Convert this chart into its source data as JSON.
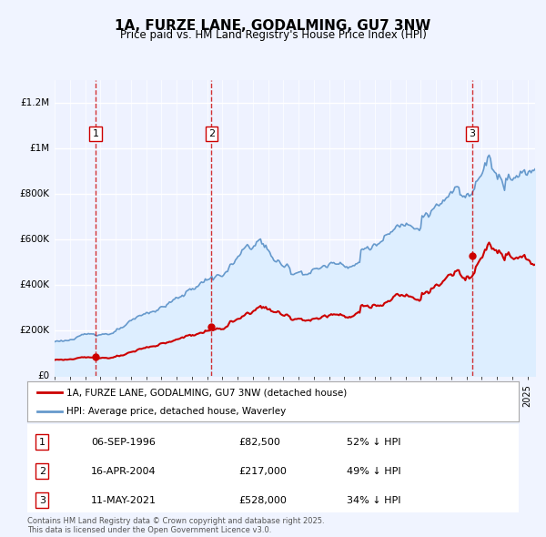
{
  "title": "1A, FURZE LANE, GODALMING, GU7 3NW",
  "subtitle": "Price paid vs. HM Land Registry's House Price Index (HPI)",
  "ylim": [
    0,
    1300000
  ],
  "yticks": [
    0,
    200000,
    400000,
    600000,
    800000,
    1000000,
    1200000
  ],
  "ytick_labels": [
    "£0",
    "£200K",
    "£400K",
    "£600K",
    "£800K",
    "£1M",
    "£1.2M"
  ],
  "xlim_start": 1994.0,
  "xlim_end": 2025.5,
  "transactions": [
    {
      "label": 1,
      "date": 1996.69,
      "price": 82500
    },
    {
      "label": 2,
      "date": 2004.29,
      "price": 217000
    },
    {
      "label": 3,
      "date": 2021.36,
      "price": 528000
    }
  ],
  "sale_color": "#cc0000",
  "hpi_color": "#6699cc",
  "hpi_fill_color": "#ddeeff",
  "background_color": "#f0f4ff",
  "plot_bg_color": "#eef2ff",
  "grid_color": "#ffffff",
  "vline_color": "#cc0000",
  "legend_entries": [
    "1A, FURZE LANE, GODALMING, GU7 3NW (detached house)",
    "HPI: Average price, detached house, Waverley"
  ],
  "table_rows": [
    {
      "num": 1,
      "date": "06-SEP-1996",
      "price": "£82,500",
      "hpi": "52% ↓ HPI"
    },
    {
      "num": 2,
      "date": "16-APR-2004",
      "price": "£217,000",
      "hpi": "49% ↓ HPI"
    },
    {
      "num": 3,
      "date": "11-MAY-2021",
      "price": "£528,000",
      "hpi": "34% ↓ HPI"
    }
  ],
  "footer": "Contains HM Land Registry data © Crown copyright and database right 2025.\nThis data is licensed under the Open Government Licence v3.0."
}
